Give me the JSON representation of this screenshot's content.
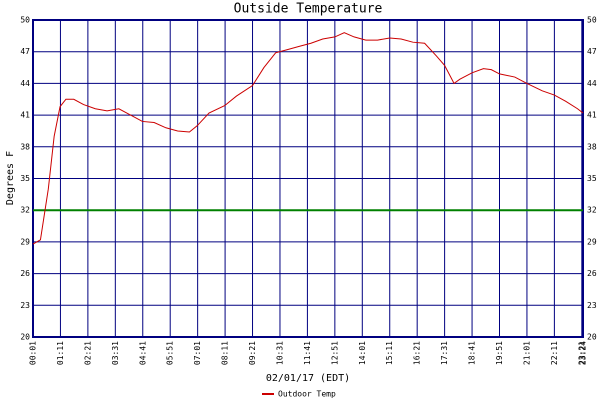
{
  "chart_data": {
    "type": "line",
    "title": "Outside Temperature",
    "ylabel": "Degrees F",
    "xlabel": "02/01/17 (EDT)",
    "x": [
      1,
      20,
      40,
      55,
      70,
      85,
      105,
      130,
      160,
      190,
      220,
      250,
      280,
      310,
      340,
      370,
      400,
      420,
      450,
      490,
      520,
      561,
      590,
      620,
      650,
      680,
      710,
      740,
      771,
      795,
      820,
      850,
      880,
      911,
      940,
      970,
      1000,
      1030,
      1051,
      1075,
      1090,
      1121,
      1150,
      1170,
      1191,
      1230,
      1261,
      1300,
      1331,
      1360,
      1390,
      1404
    ],
    "series": [
      {
        "name": "Outdoor Temp",
        "color": "#cc0000",
        "values": [
          28.8,
          29.2,
          34,
          39,
          41.8,
          42.5,
          42.5,
          42.0,
          41.6,
          41.4,
          41.6,
          41.0,
          40.4,
          40.3,
          39.8,
          39.5,
          39.4,
          40.0,
          41.2,
          41.9,
          42.8,
          43.8,
          45.5,
          46.9,
          47.2,
          47.5,
          47.8,
          48.2,
          48.4,
          48.8,
          48.4,
          48.1,
          48.1,
          48.3,
          48.2,
          47.9,
          47.8,
          46.6,
          45.7,
          44.0,
          44.4,
          45.0,
          45.4,
          45.3,
          44.9,
          44.6,
          44.0,
          43.3,
          42.9,
          42.3,
          41.6,
          41.2
        ]
      }
    ],
    "xlim": [
      1,
      1404
    ],
    "xticks": [
      {
        "value": 1,
        "label": "00:01"
      },
      {
        "value": 71,
        "label": "01:11"
      },
      {
        "value": 141,
        "label": "02:21"
      },
      {
        "value": 211,
        "label": "03:31"
      },
      {
        "value": 281,
        "label": "04:41"
      },
      {
        "value": 351,
        "label": "05:51"
      },
      {
        "value": 421,
        "label": "07:01"
      },
      {
        "value": 491,
        "label": "08:11"
      },
      {
        "value": 561,
        "label": "09:21"
      },
      {
        "value": 631,
        "label": "10:31"
      },
      {
        "value": 701,
        "label": "11:41"
      },
      {
        "value": 771,
        "label": "12:51"
      },
      {
        "value": 841,
        "label": "14:01"
      },
      {
        "value": 911,
        "label": "15:11"
      },
      {
        "value": 981,
        "label": "16:21"
      },
      {
        "value": 1051,
        "label": "17:31"
      },
      {
        "value": 1121,
        "label": "18:41"
      },
      {
        "value": 1191,
        "label": "19:51"
      },
      {
        "value": 1261,
        "label": "21:01"
      },
      {
        "value": 1331,
        "label": "22:11"
      },
      {
        "value": 1401,
        "label": "23:21"
      },
      {
        "value": 1404,
        "label": "23:24"
      }
    ],
    "ylim": [
      20,
      50
    ],
    "yticks": [
      20,
      23,
      26,
      29,
      32,
      35,
      38,
      41,
      44,
      47,
      50
    ],
    "grid": true,
    "grid_color": "#000080",
    "reference_line": {
      "value": 32,
      "color": "#008000"
    }
  }
}
